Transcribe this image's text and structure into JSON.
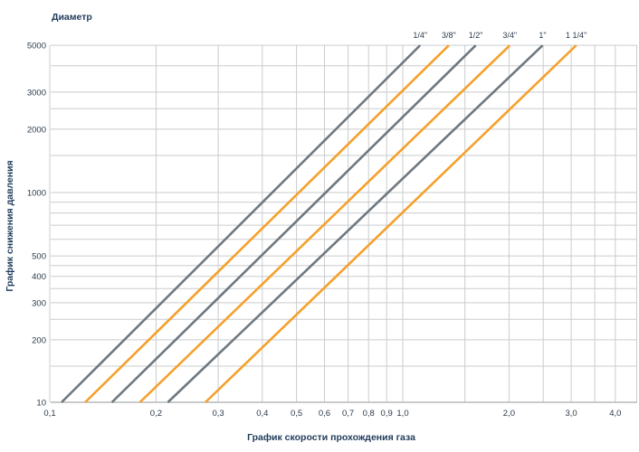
{
  "chart_data": {
    "type": "line",
    "title": "Диаметр",
    "xlabel": "График скорости прохождения газа",
    "ylabel": "График снижения давления",
    "x_scale": "log",
    "y_scale": "log (axis break between 10 and 150)",
    "xlim": [
      0.1,
      4.6
    ],
    "ylim": [
      10,
      5000
    ],
    "grid": true,
    "x_ticks": [
      {
        "value": 0.1,
        "label": "0,1"
      },
      {
        "value": 0.2,
        "label": "0,2"
      },
      {
        "value": 0.3,
        "label": "0,3"
      },
      {
        "value": 0.4,
        "label": "0,4"
      },
      {
        "value": 0.5,
        "label": "0,5"
      },
      {
        "value": 0.6,
        "label": "0,6"
      },
      {
        "value": 0.7,
        "label": "0,7"
      },
      {
        "value": 0.8,
        "label": "0,8"
      },
      {
        "value": 0.9,
        "label": "0,9"
      },
      {
        "value": 1.0,
        "label": "1,0"
      },
      {
        "value": 2.0,
        "label": "2,0"
      },
      {
        "value": 3.0,
        "label": "3,0"
      },
      {
        "value": 4.0,
        "label": "4,0"
      }
    ],
    "x_grid": [
      0.1,
      0.2,
      0.3,
      0.4,
      0.5,
      0.6,
      0.7,
      0.8,
      0.9,
      1.0,
      1.5,
      2.0,
      2.5,
      3.0,
      3.5,
      4.0,
      4.6
    ],
    "y_ticks": [
      {
        "value": 10,
        "label": "10"
      },
      {
        "value": 200,
        "label": "200"
      },
      {
        "value": 300,
        "label": "300"
      },
      {
        "value": 400,
        "label": "400"
      },
      {
        "value": 500,
        "label": "500"
      },
      {
        "value": 1000,
        "label": "1000"
      },
      {
        "value": 2000,
        "label": "2000"
      },
      {
        "value": 3000,
        "label": "3000"
      },
      {
        "value": 5000,
        "label": "5000"
      }
    ],
    "y_grid": [
      10,
      150,
      200,
      250,
      300,
      350,
      400,
      450,
      500,
      600,
      700,
      800,
      900,
      1000,
      1500,
      2000,
      2500,
      3000,
      4000,
      5000
    ],
    "series": [
      {
        "name": "1/4\"",
        "color": "#6e7880",
        "points": [
          {
            "x": 0.108,
            "y": 10
          },
          {
            "x": 1.12,
            "y": 5000
          }
        ]
      },
      {
        "name": "3/8\"",
        "color": "#f5a02a",
        "points": [
          {
            "x": 0.126,
            "y": 10
          },
          {
            "x": 1.35,
            "y": 5000
          }
        ]
      },
      {
        "name": "1/2\"",
        "color": "#6e7880",
        "points": [
          {
            "x": 0.15,
            "y": 10
          },
          {
            "x": 1.61,
            "y": 5000
          }
        ]
      },
      {
        "name": "3/4\"",
        "color": "#f5a02a",
        "points": [
          {
            "x": 0.18,
            "y": 10
          },
          {
            "x": 2.01,
            "y": 5000
          }
        ]
      },
      {
        "name": "1\"",
        "color": "#6e7880",
        "points": [
          {
            "x": 0.216,
            "y": 10
          },
          {
            "x": 2.49,
            "y": 5000
          }
        ]
      },
      {
        "name": "1 1/4\"",
        "color": "#f5a02a",
        "points": [
          {
            "x": 0.276,
            "y": 10
          },
          {
            "x": 3.1,
            "y": 5000
          }
        ]
      }
    ]
  }
}
